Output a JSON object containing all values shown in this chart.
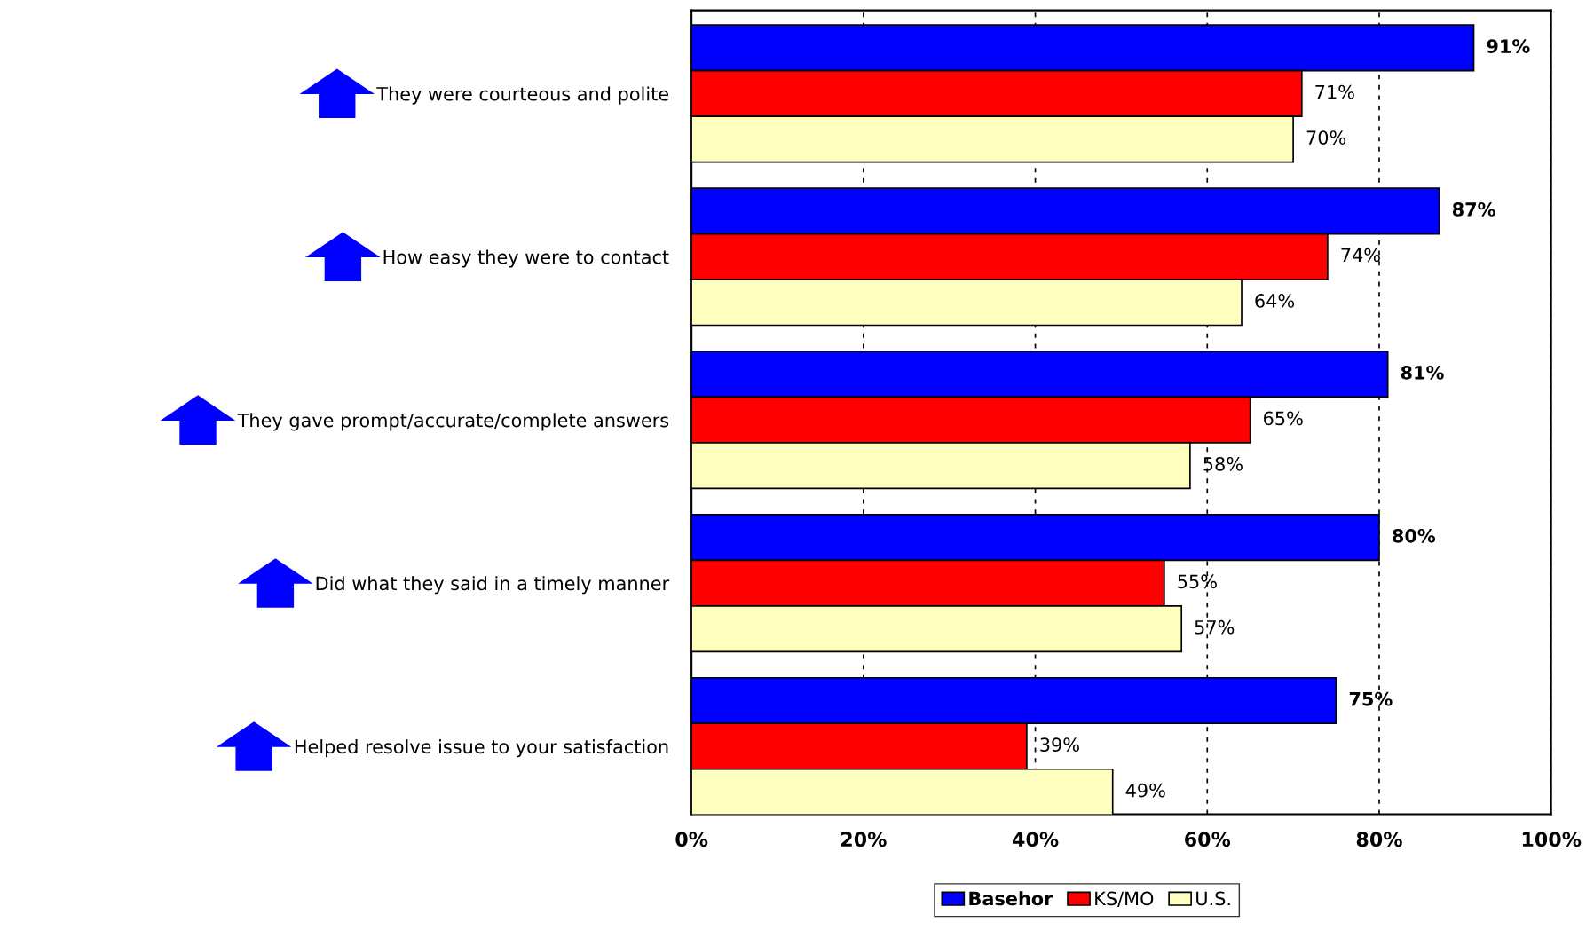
{
  "chart_data": {
    "type": "bar",
    "orientation": "horizontal",
    "categories": [
      "They were courteous and polite",
      "How easy they were to contact",
      "They gave prompt/accurate/complete answers",
      "Did what they said in a timely manner",
      "Helped resolve issue to your satisfaction"
    ],
    "series": [
      {
        "name": "Basehor",
        "color": "#0000ff",
        "values": [
          91,
          87,
          81,
          80,
          75
        ],
        "value_labels": [
          "91%",
          "87%",
          "81%",
          "80%",
          "75%"
        ]
      },
      {
        "name": "KS/MO",
        "color": "#ff0000",
        "values": [
          71,
          74,
          65,
          55,
          39
        ],
        "value_labels": [
          "71%",
          "74%",
          "65%",
          "55%",
          "39%"
        ]
      },
      {
        "name": "U.S.",
        "color": "#ffffc0",
        "values": [
          70,
          64,
          58,
          57,
          49
        ],
        "value_labels": [
          "70%",
          "64%",
          "58%",
          "57%",
          "49%"
        ]
      }
    ],
    "xlim": [
      0,
      100
    ],
    "xticks": [
      {
        "value": 0,
        "label": "0%"
      },
      {
        "value": 20,
        "label": "20%"
      },
      {
        "value": 40,
        "label": "40%"
      },
      {
        "value": 60,
        "label": "60%"
      },
      {
        "value": 80,
        "label": "80%"
      },
      {
        "value": 100,
        "label": "100%"
      }
    ],
    "grid": "x",
    "legend": "bottom"
  }
}
